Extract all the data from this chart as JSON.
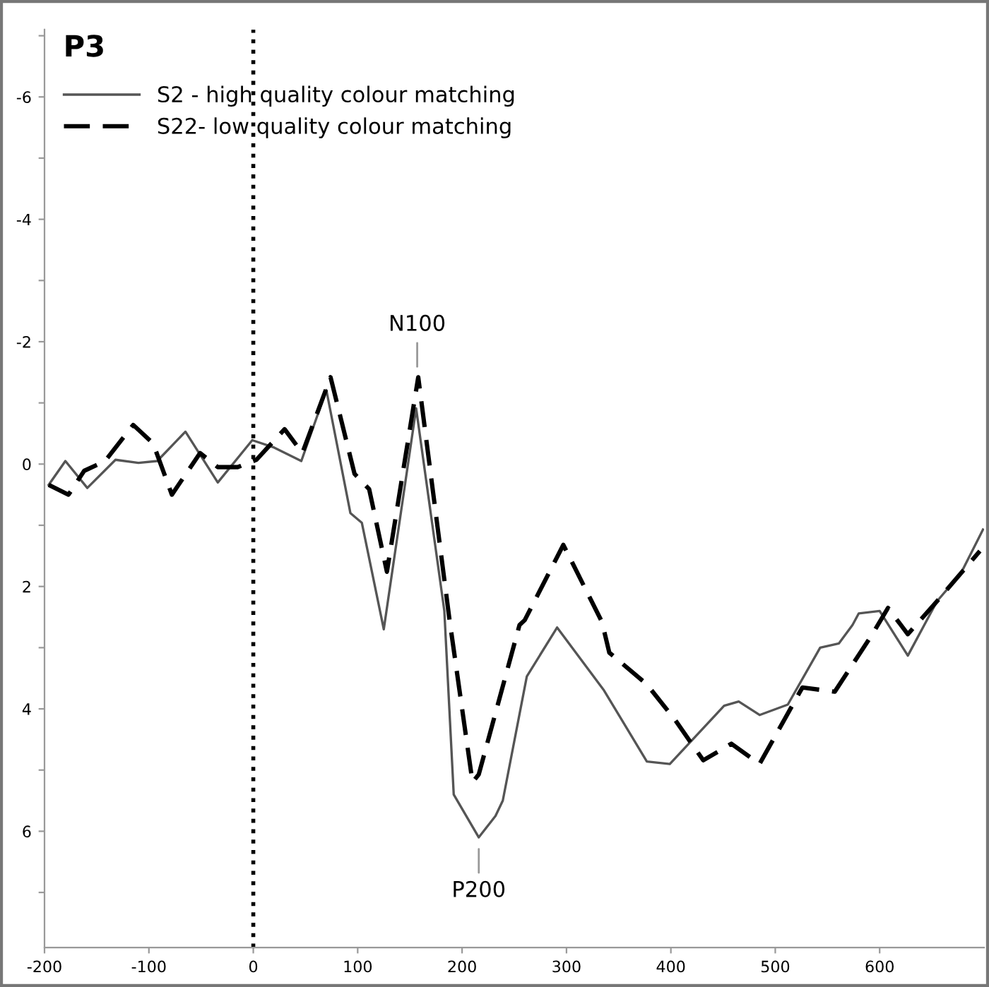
{
  "chart_data": {
    "type": "line",
    "title": "P3",
    "xlim": [
      -200,
      700
    ],
    "ylim": [
      7.9,
      -7.1
    ],
    "xticks": [
      -200,
      -100,
      0,
      100,
      200,
      300,
      400,
      500,
      600
    ],
    "yticks": [
      {
        "value": -7,
        "label": null
      },
      -6,
      {
        "value": -5,
        "label": null
      },
      -4,
      {
        "value": -3,
        "label": null
      },
      -2,
      {
        "value": -1,
        "label": null
      },
      0,
      {
        "value": 1,
        "label": null
      },
      2,
      {
        "value": 3,
        "label": null
      },
      4,
      {
        "value": 5,
        "label": null
      },
      6,
      {
        "value": 7,
        "label": null
      }
    ],
    "grid": false,
    "legend": "top left",
    "marker": "none",
    "ref_lines": [
      {
        "axis": "x",
        "value": 0,
        "color": "#000000",
        "line_style": "dotted"
      }
    ],
    "annotations": [
      {
        "text": "N100",
        "x": 157,
        "y": -1.4
      },
      {
        "text": "P200",
        "x": 216,
        "y": 6.1
      }
    ],
    "series": [
      {
        "name": "S2 - high quality colour matching",
        "color": "#555555",
        "line_style": "solid",
        "x": [
          -196,
          -180,
          -159,
          -132,
          -110,
          -92,
          -65,
          -34,
          -1,
          20,
          46,
          70,
          93,
          104,
          125,
          156,
          183,
          192,
          216,
          232,
          239,
          262,
          291,
          336,
          377,
          399,
          451,
          465,
          485,
          512,
          543,
          561,
          574,
          580,
          600,
          627,
          655,
          678,
          699
        ],
        "values": [
          0.34,
          -0.05,
          0.39,
          -0.07,
          -0.02,
          -0.05,
          -0.53,
          0.3,
          -0.39,
          -0.27,
          -0.05,
          -1.21,
          0.8,
          0.96,
          2.7,
          -0.91,
          2.4,
          5.4,
          6.1,
          5.75,
          5.5,
          3.47,
          2.67,
          3.7,
          4.86,
          4.9,
          3.95,
          3.88,
          4.1,
          3.93,
          3.0,
          2.93,
          2.63,
          2.44,
          2.4,
          3.13,
          2.24,
          1.78,
          1.07
        ]
      },
      {
        "name": "S22- low quality colour matching",
        "color": "#000000",
        "line_style": "dashed",
        "x": [
          -196,
          -177,
          -162,
          -142,
          -115,
          -96,
          -78,
          -51,
          -34,
          -15,
          3,
          30,
          47,
          74,
          97,
          111,
          128,
          158,
          188,
          210,
          216,
          255,
          260,
          297,
          334,
          341,
          377,
          404,
          431,
          458,
          485,
          526,
          557,
          593,
          608,
          627,
          655,
          696
        ],
        "values": [
          0.34,
          0.5,
          0.11,
          -0.05,
          -0.64,
          -0.34,
          0.5,
          -0.18,
          0.05,
          0.05,
          -0.07,
          -0.57,
          -0.18,
          -1.42,
          0.16,
          0.41,
          1.76,
          -1.42,
          2.55,
          5.2,
          5.07,
          2.63,
          2.55,
          1.32,
          2.58,
          3.08,
          3.6,
          4.18,
          4.84,
          4.57,
          4.9,
          3.65,
          3.72,
          2.78,
          2.35,
          2.78,
          2.24,
          1.42
        ]
      }
    ]
  }
}
